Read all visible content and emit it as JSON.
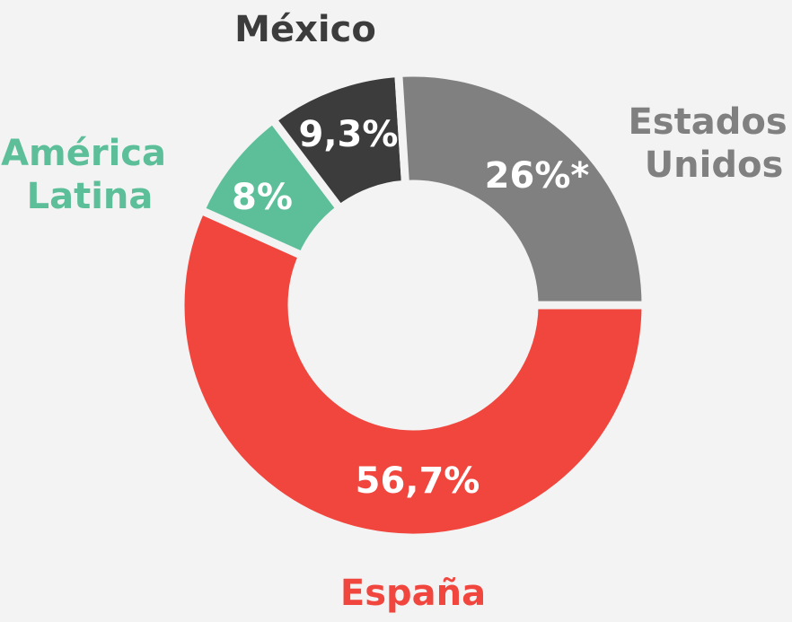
{
  "chart_data": {
    "type": "pie",
    "donut": true,
    "categories": [
      "España",
      "América Latina",
      "México",
      "Estados Unidos"
    ],
    "values": [
      56.7,
      8,
      9.3,
      26
    ],
    "value_labels": [
      "56,7%",
      "8%",
      "9,3%",
      "26%*"
    ],
    "colors": [
      "#f0463e",
      "#5dbf9a",
      "#3c3c3c",
      "#808080"
    ]
  }
}
